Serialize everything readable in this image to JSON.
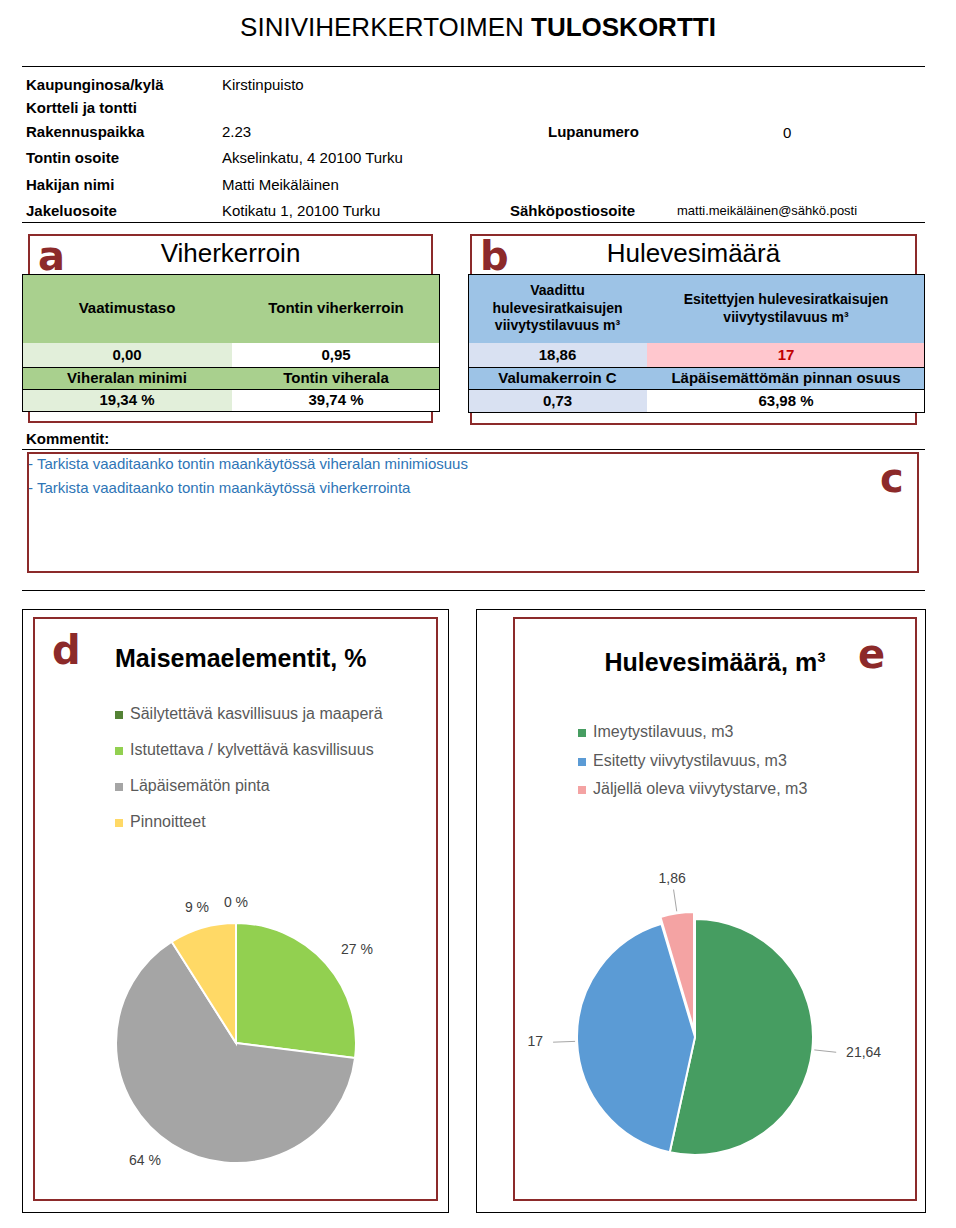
{
  "header": {
    "title_normal": "SINIVIHERKERTOIMEN",
    "title_bold": "TULOSKORTTI"
  },
  "info": {
    "fields": [
      {
        "label": "Kaupunginosa/kylä",
        "value": "Kirstinpuisto"
      },
      {
        "label": "Kortteli ja tontti"
      },
      {
        "label": "Rakennuspaikka",
        "value": "2.23",
        "extra_label": "Lupanumero",
        "extra_value": "0"
      },
      {
        "label": "Tontin osoite",
        "value": "Akselinkatu, 4 20100 Turku"
      },
      {
        "label": "Hakijan nimi",
        "value": "Matti Meikäläinen"
      },
      {
        "label": "Jakeluosoite",
        "value": "Kotikatu 1, 20100 Turku",
        "extra_label": "Sähköpostiosoite",
        "extra_value": "matti.meikäläinen@sähkö.posti"
      }
    ]
  },
  "panels": {
    "a": {
      "panel_letter": "a",
      "title": "Viherkerroin",
      "rows": [
        [
          "Vaatimustaso",
          "Tontin viherkerroin"
        ],
        [
          "0,00",
          "0,95"
        ],
        [
          "Viheralan minimi",
          "Tontin viherala"
        ],
        [
          "19,34 %",
          "39,74 %"
        ]
      ]
    },
    "b": {
      "panel_letter": "b",
      "title": "Hulevesimäärä",
      "rows": [
        [
          "Vaadittu hulevesiratkaisujen viivytystilavuus m³",
          "Esitettyjen hulevesiratkaisujen viivytystilavuus m³"
        ],
        [
          "18,86",
          "17"
        ],
        [
          "Valumakerroin C",
          "Läpäisemättömän pinnan osuus"
        ],
        [
          "0,73",
          "63,98 %"
        ]
      ]
    }
  },
  "comments": {
    "title": "Kommentit:",
    "panel_letter": "c",
    "items": [
      "- Tarkista vaaditaanko tontin maankäytössä viheralan minimiosuus",
      "- Tarkista vaaditaanko tontin maankäytössä viherkerrointa"
    ]
  },
  "chart_data": [
    {
      "type": "pie",
      "panel_letter": "d",
      "title": "Maisemaelementit, %",
      "categories": [
        "Säilytettävä kasvillisuus ja maaperä",
        "Istutettava / kylvettävä kasvillisuus",
        "Läpäisemätön pinta",
        "Pinnoitteet"
      ],
      "values": [
        0,
        27,
        64,
        9
      ],
      "value_labels": [
        "0 %",
        "27 %",
        "64 %",
        "9 %"
      ],
      "colors": [
        "#548235",
        "#92d050",
        "#a5a5a5",
        "#ffd966"
      ],
      "data_labels": true,
      "legend": "top"
    },
    {
      "type": "pie",
      "panel_letter": "e",
      "title": "Hulevesimäärä, m³",
      "categories": [
        "Imeytystilavuus, m3",
        "Esitetty viivytystilavuus, m3",
        "Jäljellä oleva viivytystarve, m3"
      ],
      "values": [
        21.64,
        17,
        1.86
      ],
      "value_labels": [
        "21,64",
        "17",
        "1,86"
      ],
      "colors": [
        "#469d61",
        "#5b9bd5",
        "#f4a3a3"
      ],
      "data_labels": true,
      "legend": "top"
    }
  ]
}
